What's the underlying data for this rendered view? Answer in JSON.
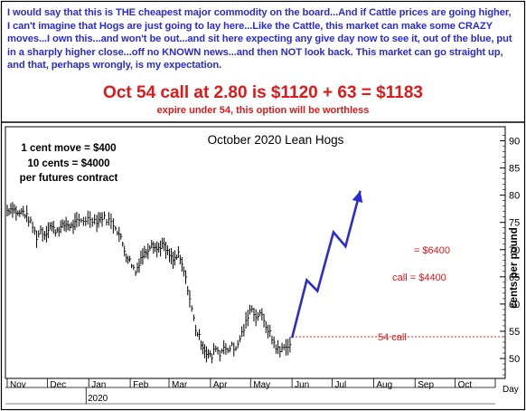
{
  "note_text": "I would say that this is THE cheapest major commodity on the board...And if Cattle prices are going higher, I can't imagine that Hogs are just going to lay here...Like the Cattle, this market can make some CRAZY moves...I own this...and won't be out...and sit here expecting any give day now to see it, out of the blue, put in a sharply higher close...off no KNOWN news...and then NOT look back. This market can go straight up, and that, perhaps wrongly, is my expectation.",
  "headline": "Oct 54 call at 2.80 is $1120 + 63 = $1183",
  "subheadline": "expire under 54, this option will be worthless",
  "colors": {
    "note": "#2b2bd6",
    "alert": "#e01818",
    "projection": "#2b2bd6",
    "price": "#000000"
  },
  "chart_data": {
    "type": "ohlc",
    "title": "October 2020 Lean Hogs",
    "ylabel": "cents per pound",
    "ylim": [
      46,
      92
    ],
    "yticks": [
      50,
      55,
      60,
      65,
      70,
      75,
      80,
      85,
      90
    ],
    "x_tick_labels": [
      "Nov",
      "Dec",
      "Jan",
      "Feb",
      "Mar",
      "Apr",
      "May",
      "Jun",
      "Jul",
      "Aug",
      "Sep",
      "Oct"
    ],
    "x_unit_label": "Day",
    "year_label": "2020",
    "contract_notes": [
      "1 cent move = $400",
      "10 cents = $4000",
      "per futures contract"
    ],
    "strike_level": 54,
    "strike_label": "54 call",
    "annotation_upper": "= $6400",
    "annotation_lower": "call = $4400",
    "price_path": [
      {
        "date": "2019-11-01",
        "price": 77.2
      },
      {
        "date": "2019-11-05",
        "price": 77.8
      },
      {
        "date": "2019-11-09",
        "price": 76.5
      },
      {
        "date": "2019-11-13",
        "price": 77.0
      },
      {
        "date": "2019-11-17",
        "price": 75.6
      },
      {
        "date": "2019-11-20",
        "price": 74.2
      },
      {
        "date": "2019-11-23",
        "price": 72.3
      },
      {
        "date": "2019-11-26",
        "price": 73.6
      },
      {
        "date": "2019-11-29",
        "price": 72.8
      },
      {
        "date": "2019-12-03",
        "price": 74.4
      },
      {
        "date": "2019-12-07",
        "price": 73.5
      },
      {
        "date": "2019-12-11",
        "price": 74.0
      },
      {
        "date": "2019-12-15",
        "price": 74.7
      },
      {
        "date": "2019-12-19",
        "price": 74.2
      },
      {
        "date": "2019-12-23",
        "price": 75.0
      },
      {
        "date": "2019-12-28",
        "price": 75.4
      },
      {
        "date": "2020-01-02",
        "price": 75.8
      },
      {
        "date": "2020-01-07",
        "price": 75.3
      },
      {
        "date": "2020-01-11",
        "price": 76.0
      },
      {
        "date": "2020-01-16",
        "price": 75.4
      },
      {
        "date": "2020-01-21",
        "price": 74.3
      },
      {
        "date": "2020-01-25",
        "price": 72.0
      },
      {
        "date": "2020-01-29",
        "price": 69.0
      },
      {
        "date": "2020-02-02",
        "price": 67.4
      },
      {
        "date": "2020-02-05",
        "price": 65.8
      },
      {
        "date": "2020-02-09",
        "price": 68.6
      },
      {
        "date": "2020-02-13",
        "price": 69.6
      },
      {
        "date": "2020-02-17",
        "price": 71.4
      },
      {
        "date": "2020-02-21",
        "price": 70.0
      },
      {
        "date": "2020-02-25",
        "price": 71.0
      },
      {
        "date": "2020-02-29",
        "price": 69.4
      },
      {
        "date": "2020-03-04",
        "price": 68.0
      },
      {
        "date": "2020-03-08",
        "price": 69.0
      },
      {
        "date": "2020-03-12",
        "price": 66.0
      },
      {
        "date": "2020-03-15",
        "price": 63.0
      },
      {
        "date": "2020-03-18",
        "price": 59.0
      },
      {
        "date": "2020-03-21",
        "price": 55.5
      },
      {
        "date": "2020-03-25",
        "price": 53.0
      },
      {
        "date": "2020-03-29",
        "price": 51.0
      },
      {
        "date": "2020-04-02",
        "price": 50.2
      },
      {
        "date": "2020-04-05",
        "price": 52.3
      },
      {
        "date": "2020-04-08",
        "price": 50.6
      },
      {
        "date": "2020-04-11",
        "price": 52.6
      },
      {
        "date": "2020-04-14",
        "price": 51.0
      },
      {
        "date": "2020-04-17",
        "price": 52.8
      },
      {
        "date": "2020-04-20",
        "price": 51.4
      },
      {
        "date": "2020-04-23",
        "price": 53.8
      },
      {
        "date": "2020-04-26",
        "price": 55.5
      },
      {
        "date": "2020-04-29",
        "price": 57.6
      },
      {
        "date": "2020-05-02",
        "price": 59.6
      },
      {
        "date": "2020-05-05",
        "price": 57.4
      },
      {
        "date": "2020-05-08",
        "price": 58.6
      },
      {
        "date": "2020-05-11",
        "price": 56.6
      },
      {
        "date": "2020-05-14",
        "price": 55.4
      },
      {
        "date": "2020-05-17",
        "price": 53.6
      },
      {
        "date": "2020-05-20",
        "price": 52.2
      },
      {
        "date": "2020-05-23",
        "price": 51.2
      },
      {
        "date": "2020-05-26",
        "price": 52.6
      },
      {
        "date": "2020-05-29",
        "price": 51.8
      },
      {
        "date": "2020-06-01",
        "price": 53.4
      }
    ],
    "projection_path": [
      {
        "date": "2020-06-01",
        "price": 53.8
      },
      {
        "date": "2020-06-12",
        "price": 64.4
      },
      {
        "date": "2020-06-20",
        "price": 62.4
      },
      {
        "date": "2020-07-02",
        "price": 73.2
      },
      {
        "date": "2020-07-11",
        "price": 70.6
      },
      {
        "date": "2020-07-22",
        "price": 80.8
      }
    ]
  }
}
